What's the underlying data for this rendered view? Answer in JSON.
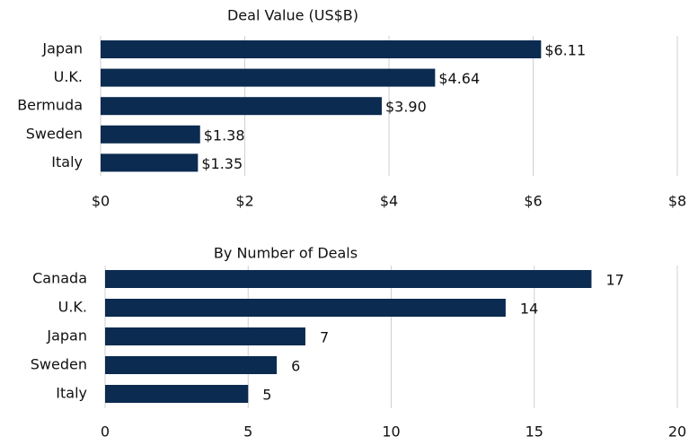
{
  "chart_data": [
    {
      "type": "bar",
      "orientation": "horizontal",
      "title": "Deal Value (US$B)",
      "categories": [
        "Japan",
        "U.K.",
        "Bermuda",
        "Sweden",
        "Italy"
      ],
      "values": [
        6.11,
        4.64,
        3.9,
        1.38,
        1.35
      ],
      "value_labels": [
        "$6.11",
        "$4.64",
        "$3.90",
        "$1.38",
        "$1.35"
      ],
      "color": "#0b2b50",
      "xlim": [
        0,
        8
      ],
      "xticks": [
        {
          "value": 0,
          "label": "$0"
        },
        {
          "value": 2,
          "label": "$2"
        },
        {
          "value": 4,
          "label": "$4"
        },
        {
          "value": 6,
          "label": "$6"
        },
        {
          "value": 8,
          "label": "$8"
        }
      ],
      "grid": true
    },
    {
      "type": "bar",
      "orientation": "horizontal",
      "title": "By Number of Deals",
      "categories": [
        "Canada",
        "U.K.",
        "Japan",
        "Sweden",
        "Italy"
      ],
      "values": [
        17,
        14,
        7,
        6,
        5
      ],
      "color": "#0b2b50",
      "xlim": [
        0,
        20
      ],
      "xticks": [
        0,
        5,
        10,
        15,
        20
      ],
      "grid": true
    }
  ]
}
